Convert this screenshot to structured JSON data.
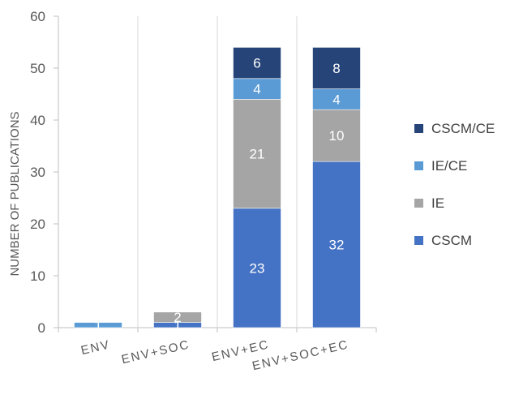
{
  "chart_data": {
    "type": "bar",
    "stacked": true,
    "categories": [
      "ENV",
      "ENV+SOC",
      "ENV+EC",
      "ENV+SOC+EC"
    ],
    "series": [
      {
        "name": "CSCM",
        "color": "#4472C4",
        "values": [
          0,
          1,
          23,
          32
        ],
        "labels": [
          "",
          "1",
          "23",
          "32"
        ]
      },
      {
        "name": "IE",
        "color": "#A5A5A5",
        "values": [
          0,
          2,
          21,
          10
        ],
        "labels": [
          "",
          "2",
          "21",
          "10"
        ]
      },
      {
        "name": "IE/CE",
        "color": "#5B9BD5",
        "values": [
          1,
          0,
          4,
          4
        ],
        "labels": [
          "1",
          "",
          "4",
          "4"
        ]
      },
      {
        "name": "CSCM/CE",
        "color": "#264478",
        "values": [
          0,
          0,
          6,
          8
        ],
        "labels": [
          "",
          "",
          "6",
          "8"
        ]
      }
    ],
    "legend_order": [
      "CSCM/CE",
      "IE/CE",
      "IE",
      "CSCM"
    ],
    "ylabel": "NUMBER OF PUBLICATIONS",
    "xlabel": "",
    "ylim": [
      0,
      60
    ],
    "yticks": [
      "0",
      "10",
      "20",
      "30",
      "40",
      "50",
      "60"
    ],
    "legend_position": "right",
    "grid": false,
    "category_separators": true
  }
}
